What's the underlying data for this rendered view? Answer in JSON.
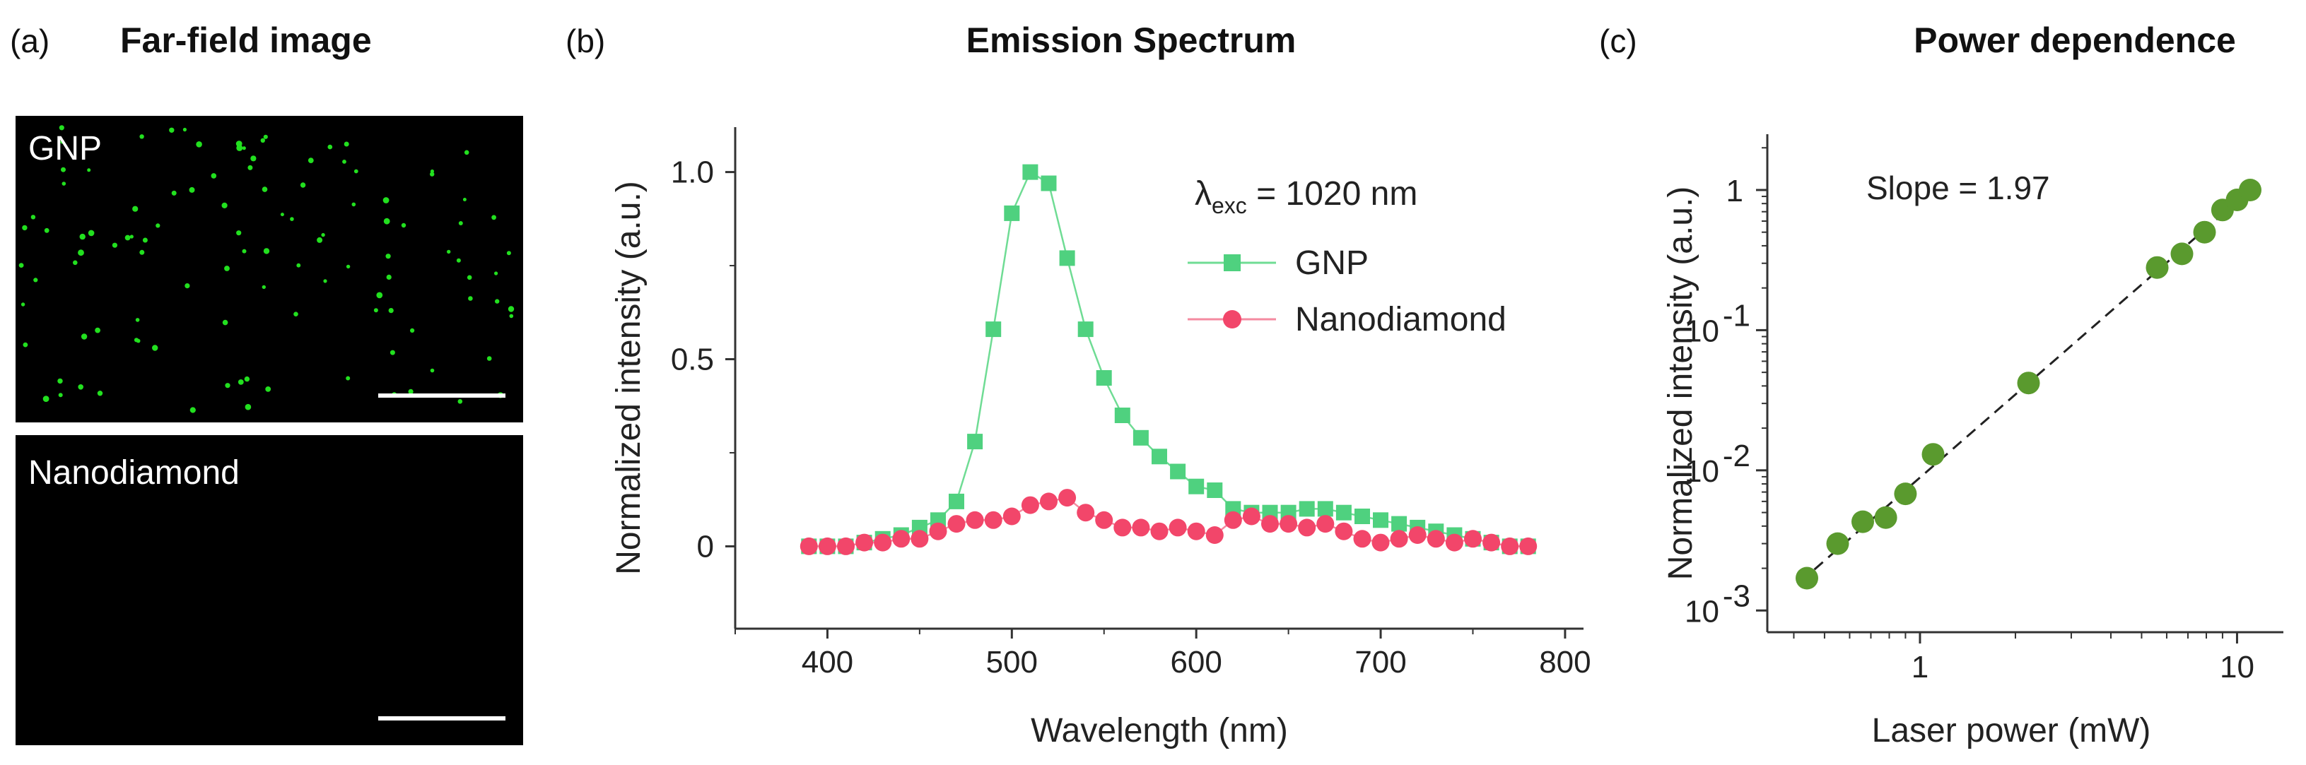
{
  "colors": {
    "gnp": "#4fd17f",
    "gnp_line": "#6fdc94",
    "nanodiamond": "#f2466a",
    "nanodiamond_line": "#f48aa0",
    "power": "#5a9a2e",
    "dots": "#22e01f"
  },
  "panel_a": {
    "label": "(a)",
    "title": "Far-field image",
    "top_image_label": "GNP",
    "bottom_image_label": "Nanodiamond"
  },
  "chart_data": [
    {
      "panel": "(b)",
      "type": "line",
      "title": "Emission Spectrum",
      "xlabel": "Wavelength (nm)",
      "ylabel": "Normalized intensity (a.u.)",
      "xlim": [
        350,
        810
      ],
      "ylim": [
        -0.22,
        1.12
      ],
      "xticks": [
        400,
        500,
        600,
        700,
        800
      ],
      "yticks": [
        0,
        0.5,
        1.0
      ],
      "ytick_labels": [
        "0",
        "0.5",
        "1.0"
      ],
      "annotation": {
        "lambda": "λ",
        "sub": "exc",
        "rest": " = 1020 nm"
      },
      "series": [
        {
          "name": "GNP",
          "marker": "square",
          "x": [
            390,
            400,
            410,
            420,
            430,
            440,
            450,
            460,
            470,
            480,
            490,
            500,
            510,
            520,
            530,
            540,
            550,
            560,
            570,
            580,
            590,
            600,
            610,
            620,
            630,
            640,
            650,
            660,
            670,
            680,
            690,
            700,
            710,
            720,
            730,
            740,
            750,
            760,
            770,
            780
          ],
          "values": [
            0,
            0,
            0,
            0.01,
            0.02,
            0.03,
            0.05,
            0.07,
            0.12,
            0.28,
            0.58,
            0.89,
            1.0,
            0.97,
            0.77,
            0.58,
            0.45,
            0.35,
            0.29,
            0.24,
            0.2,
            0.16,
            0.15,
            0.1,
            0.09,
            0.09,
            0.09,
            0.1,
            0.1,
            0.09,
            0.08,
            0.07,
            0.06,
            0.05,
            0.04,
            0.03,
            0.02,
            0.01,
            0,
            0
          ]
        },
        {
          "name": "Nanodiamond",
          "marker": "circle",
          "x": [
            390,
            400,
            410,
            420,
            430,
            440,
            450,
            460,
            470,
            480,
            490,
            500,
            510,
            520,
            530,
            540,
            550,
            560,
            570,
            580,
            590,
            600,
            610,
            620,
            630,
            640,
            650,
            660,
            670,
            680,
            690,
            700,
            710,
            720,
            730,
            740,
            750,
            760,
            770,
            780
          ],
          "values": [
            0,
            0,
            0,
            0.01,
            0.01,
            0.02,
            0.02,
            0.04,
            0.06,
            0.07,
            0.07,
            0.08,
            0.11,
            0.12,
            0.13,
            0.09,
            0.07,
            0.05,
            0.05,
            0.04,
            0.05,
            0.04,
            0.03,
            0.07,
            0.08,
            0.06,
            0.06,
            0.05,
            0.06,
            0.04,
            0.02,
            0.01,
            0.02,
            0.03,
            0.02,
            0.01,
            0.02,
            0.01,
            0,
            0
          ]
        }
      ]
    },
    {
      "panel": "(c)",
      "type": "scatter",
      "title": "Power dependence",
      "xlabel": "Laser power (mW)",
      "ylabel": "Normalized intensity (a.u.)",
      "xscale": "log",
      "yscale": "log",
      "xlim": [
        0.33,
        14
      ],
      "ylim": [
        0.0007,
        2.5
      ],
      "xticks": [
        1,
        10
      ],
      "xtick_labels": [
        "1",
        "10"
      ],
      "yticks": [
        0.001,
        0.01,
        0.1,
        1
      ],
      "ytick_labels": [
        [
          "10",
          "-3"
        ],
        [
          "10",
          "-2"
        ],
        [
          "10",
          "-1"
        ],
        [
          "1",
          ""
        ]
      ],
      "annotation": "Slope = 1.97",
      "slope": 1.97,
      "fit_range": [
        0.42,
        11.5
      ],
      "x": [
        0.44,
        0.55,
        0.66,
        0.78,
        0.9,
        1.1,
        2.2,
        5.6,
        6.7,
        7.9,
        9.0,
        10.0,
        11.0
      ],
      "values": [
        0.0017,
        0.003,
        0.0043,
        0.0046,
        0.0068,
        0.013,
        0.042,
        0.28,
        0.35,
        0.5,
        0.72,
        0.85,
        1.0
      ]
    }
  ]
}
